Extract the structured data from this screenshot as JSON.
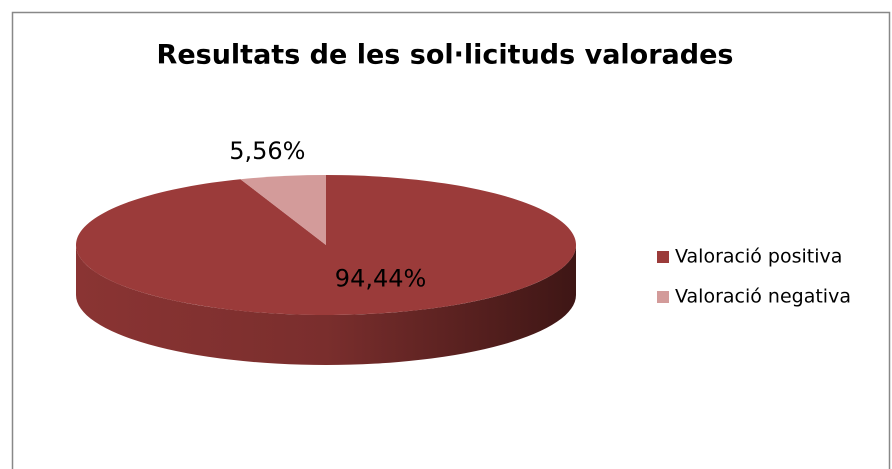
{
  "chart_data": {
    "type": "pie",
    "title": "Resultats de les sol·licituds valorades",
    "categories": [
      "Valoració positiva",
      "Valoració negativa"
    ],
    "values": [
      94.44,
      5.56
    ],
    "value_labels": [
      "94,44%",
      "5,56%"
    ],
    "colors": [
      "#9b3b3a",
      "#d39b9a"
    ],
    "legend": "right"
  }
}
